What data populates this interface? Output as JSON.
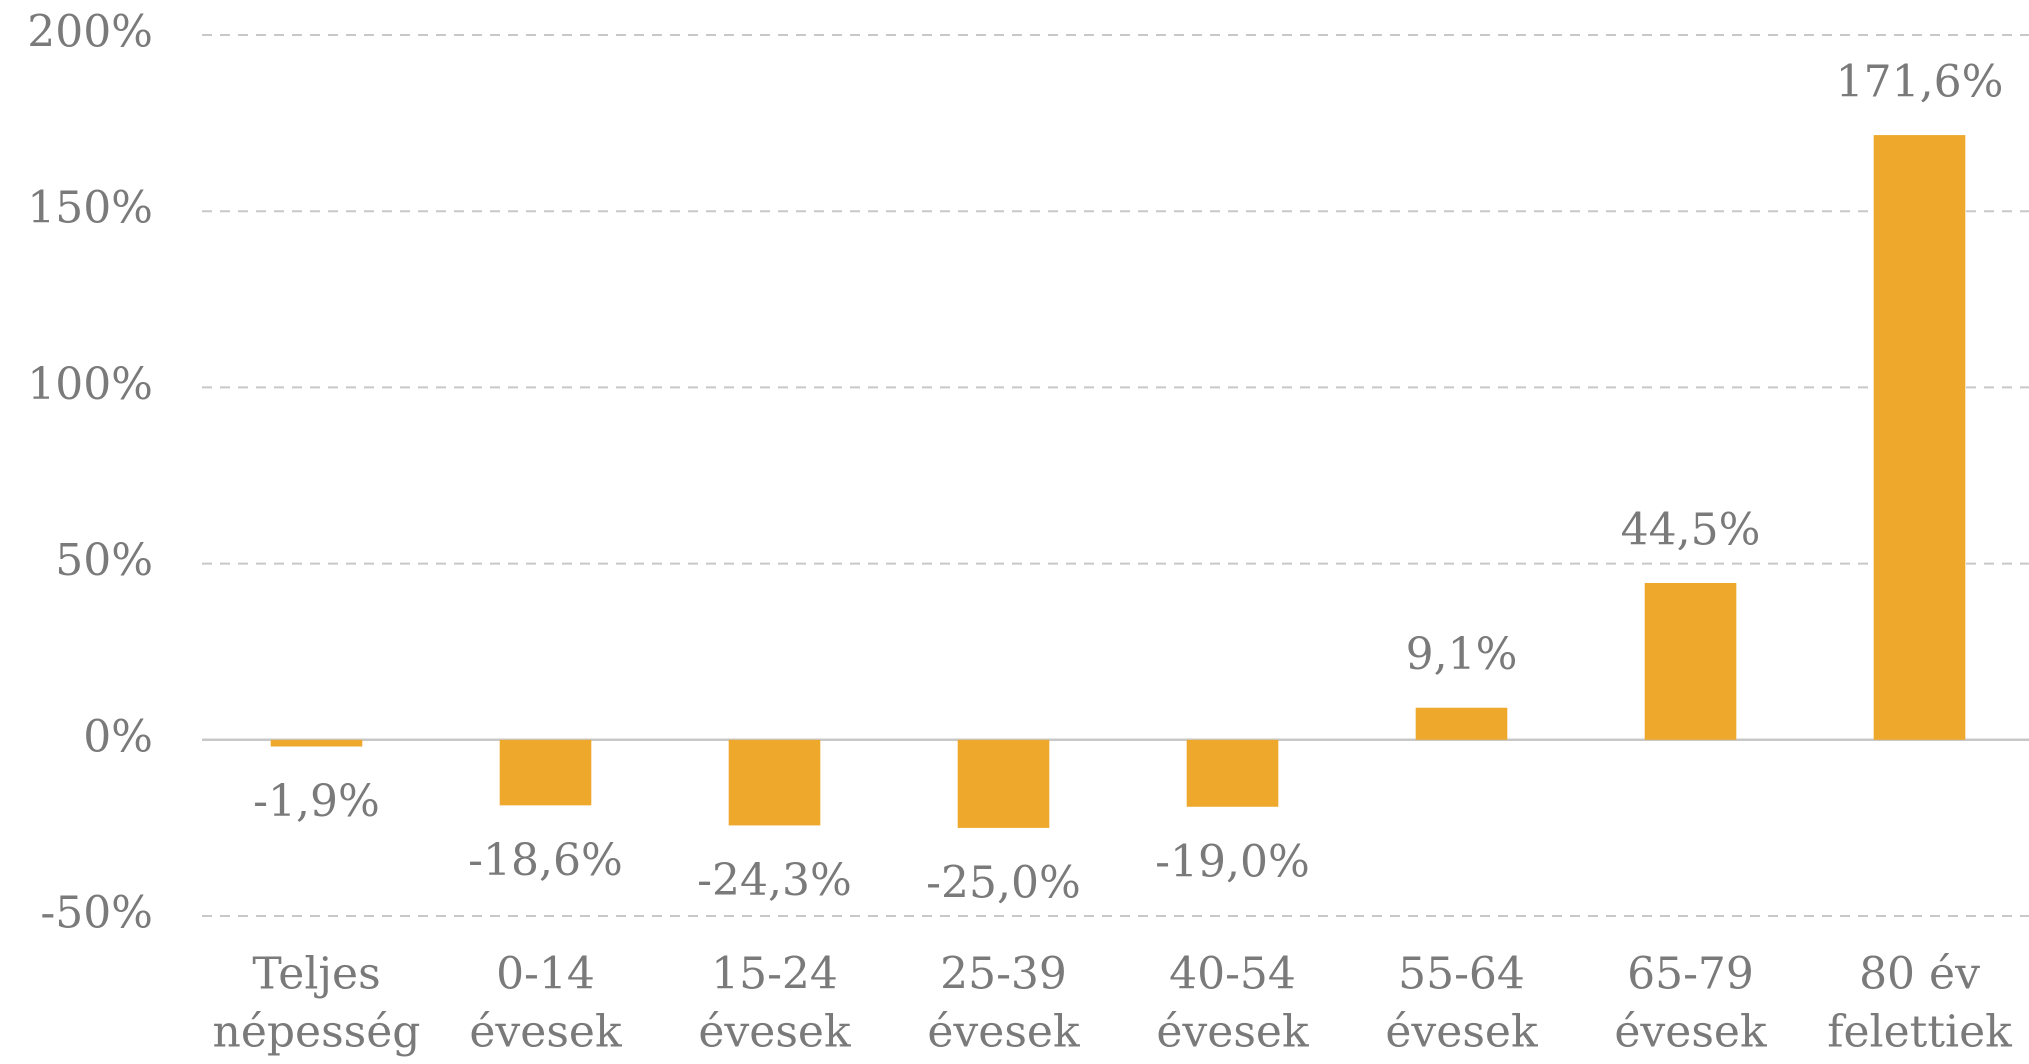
{
  "chart_data": {
    "type": "bar",
    "categories": [
      [
        "Teljes",
        "népesség"
      ],
      [
        "0-14",
        "évesek"
      ],
      [
        "15-24",
        "évesek"
      ],
      [
        "25-39",
        "évesek"
      ],
      [
        "40-54",
        "évesek"
      ],
      [
        "55-64",
        "évesek"
      ],
      [
        "65-79",
        "évesek"
      ],
      [
        "80 év",
        "felettiek"
      ]
    ],
    "values": [
      -1.9,
      -18.6,
      -24.3,
      -25.0,
      -19.0,
      9.1,
      44.5,
      171.6
    ],
    "value_labels": [
      "-1,9%",
      "-18,6%",
      "-24,3%",
      "-25,0%",
      "-19,0%",
      "9,1%",
      "44,5%",
      "171,6%"
    ],
    "color": "#eea82c",
    "ylim": [
      -50,
      200
    ],
    "yticks": [
      {
        "value": -50,
        "label": "-50%"
      },
      {
        "value": 0,
        "label": "0%"
      },
      {
        "value": 50,
        "label": "50%"
      },
      {
        "value": 100,
        "label": "100%"
      },
      {
        "value": 150,
        "label": "150%"
      },
      {
        "value": 200,
        "label": "200%"
      }
    ],
    "grid": true
  }
}
